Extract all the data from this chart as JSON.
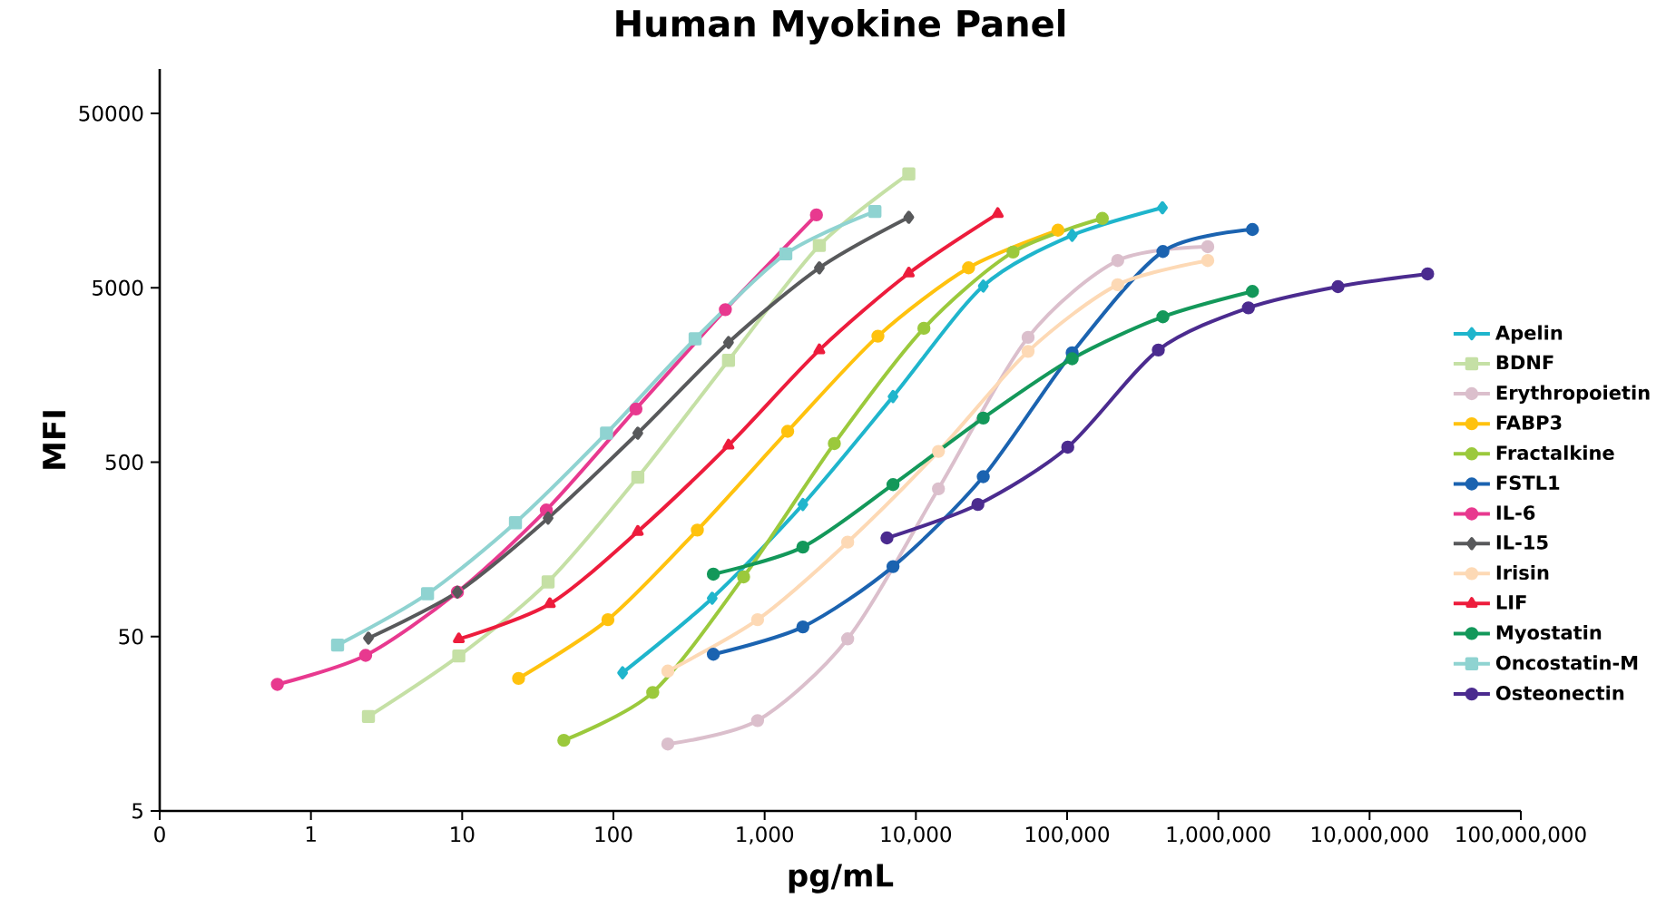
{
  "chart_data": {
    "type": "line",
    "title": "Human Myokine Panel",
    "xlabel": "pg/mL",
    "ylabel": "MFI",
    "log": "xy",
    "grid": false,
    "legend": "right",
    "xlim": [
      0.1,
      100000000
    ],
    "ylim": [
      5,
      90000
    ],
    "xticks": [
      {
        "value": 0.1,
        "label": "0"
      },
      1,
      10,
      100,
      {
        "value": 1000,
        "label": "1,000"
      },
      {
        "value": 10000,
        "label": "10,000"
      },
      {
        "value": 100000,
        "label": "100,000"
      },
      {
        "value": 1000000,
        "label": "1,000,000"
      },
      {
        "value": 10000000,
        "label": "10,000,000"
      },
      {
        "value": 100000000,
        "label": "100,000,000"
      }
    ],
    "yticks": [
      5,
      50,
      500,
      5000,
      50000
    ],
    "series": [
      {
        "name": "Apelin",
        "color": "#1fb5cc",
        "marker": "diamond",
        "x": [
          115,
          450,
          1790,
          7060,
          27900,
          108000,
          427000
        ],
        "values": [
          31,
          83,
          286,
          1190,
          5120,
          10000,
          14400
        ]
      },
      {
        "name": "BDNF",
        "color": "#c5e0a5",
        "marker": "square",
        "x": [
          2.4,
          9.5,
          37,
          145,
          577,
          2300,
          8980
        ],
        "values": [
          17.4,
          38.7,
          103,
          410,
          1920,
          8750,
          22500
        ]
      },
      {
        "name": "Erythropoietin",
        "color": "#dbbfcc",
        "marker": "circle",
        "x": [
          229,
          898,
          3540,
          14100,
          55200,
          216000,
          851000
        ],
        "values": [
          12.1,
          16.5,
          48.5,
          352,
          2600,
          7170,
          8610
        ]
      },
      {
        "name": "FABP3",
        "color": "#ffc20e",
        "marker": "circle",
        "x": [
          23.6,
          92,
          359,
          1420,
          5610,
          22300,
          87000
        ],
        "values": [
          28.8,
          62.5,
          204,
          752,
          2640,
          6510,
          10700
        ]
      },
      {
        "name": "Fractalkine",
        "color": "#9bc93c",
        "marker": "circle",
        "x": [
          47,
          182,
          726,
          2890,
          11300,
          43900,
          171000
        ],
        "values": [
          12.7,
          23.9,
          110,
          640,
          2930,
          8020,
          12500
        ]
      },
      {
        "name": "FSTL1",
        "color": "#1b63b0",
        "marker": "circle",
        "x": [
          458,
          1790,
          7060,
          27900,
          108000,
          430000,
          1680000
        ],
        "values": [
          39.6,
          56.8,
          126,
          413,
          2120,
          8080,
          10800
        ]
      },
      {
        "name": "IL-6",
        "color": "#e8398f",
        "marker": "circle",
        "x": [
          0.6,
          2.3,
          9.3,
          36,
          141,
          550,
          2200
        ],
        "values": [
          26.6,
          39,
          90,
          266,
          1010,
          3750,
          13100
        ]
      },
      {
        "name": "IL-15",
        "color": "#58595b",
        "marker": "diamond",
        "x": [
          2.4,
          9.3,
          37,
          145,
          577,
          2300,
          8980
        ],
        "values": [
          49,
          90,
          239,
          734,
          2430,
          6510,
          12700
        ]
      },
      {
        "name": "Irisin",
        "color": "#fdd9b5",
        "marker": "circle",
        "x": [
          229,
          898,
          3540,
          14100,
          55200,
          216000,
          851000
        ],
        "values": [
          31.7,
          62.5,
          174,
          577,
          2160,
          5210,
          7170
        ]
      },
      {
        "name": "LIF",
        "color": "#ed1c3c",
        "marker": "triangle",
        "x": [
          9.5,
          38,
          145,
          577,
          2300,
          8980,
          34800
        ],
        "values": [
          48.4,
          77,
          200,
          625,
          2200,
          6060,
          13300
        ]
      },
      {
        "name": "Myostatin",
        "color": "#13985a",
        "marker": "circle",
        "x": [
          458,
          1790,
          7060,
          27900,
          108000,
          430000,
          1680000
        ],
        "values": [
          114,
          163,
          372,
          896,
          1960,
          3410,
          4770
        ]
      },
      {
        "name": "Oncostatin-M",
        "color": "#8fd3d1",
        "marker": "square",
        "x": [
          1.5,
          5.9,
          22.5,
          90,
          347,
          1380,
          5360
        ],
        "values": [
          44.7,
          88,
          225,
          734,
          2550,
          7830,
          13700
        ]
      },
      {
        "name": "Osteonectin",
        "color": "#4b2b8f",
        "marker": "circle",
        "x": [
          6440,
          25700,
          101000,
          401000,
          1580000,
          6180000,
          24200000
        ],
        "values": [
          184,
          286,
          610,
          2200,
          3840,
          5080,
          6010
        ]
      }
    ]
  }
}
